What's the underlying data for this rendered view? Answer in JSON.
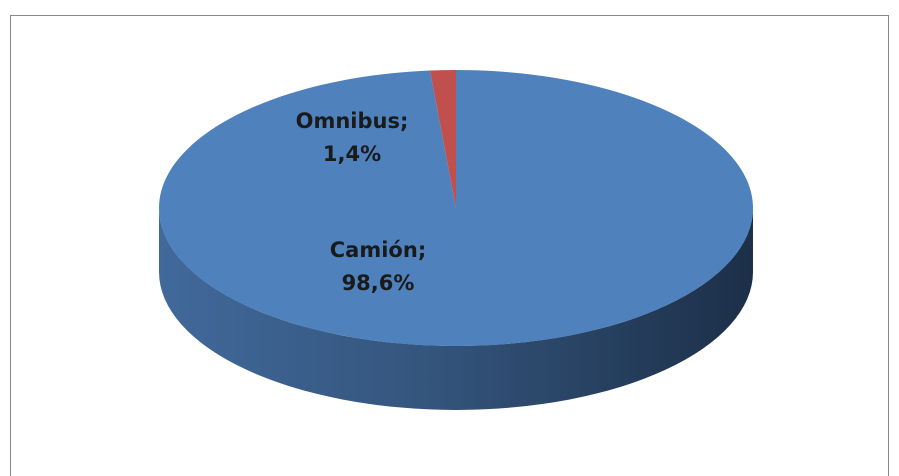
{
  "chart_data": {
    "type": "pie3d",
    "categories": [
      "Camión",
      "Omnibus"
    ],
    "values": [
      98.6,
      1.4
    ],
    "value_labels": [
      "98,6%",
      "1,4%"
    ],
    "label_separator": ";",
    "colors": [
      "#4f81bd",
      "#c0504d"
    ]
  }
}
